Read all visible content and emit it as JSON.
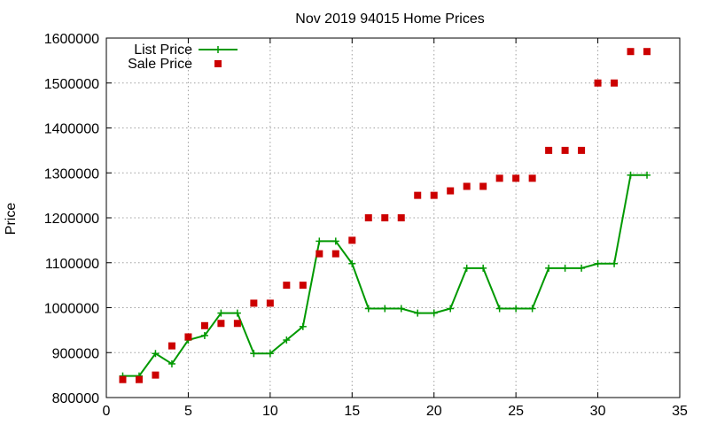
{
  "chart_data": {
    "type": "line",
    "title": "Nov 2019 94015 Home Prices",
    "xlabel": "",
    "ylabel": "Price",
    "xlim": [
      0,
      35
    ],
    "ylim": [
      800000,
      1600000
    ],
    "xticks": [
      0,
      5,
      10,
      15,
      20,
      25,
      30,
      35
    ],
    "yticks": [
      800000,
      900000,
      1000000,
      1100000,
      1200000,
      1300000,
      1400000,
      1500000,
      1600000
    ],
    "grid": true,
    "legend_position": "top-left",
    "series": [
      {
        "name": "List Price",
        "style": "line+cross",
        "color": "#009900",
        "x": [
          1,
          2,
          3,
          4,
          5,
          6,
          7,
          8,
          9,
          10,
          11,
          12,
          13,
          14,
          15,
          16,
          17,
          18,
          19,
          20,
          21,
          22,
          23,
          24,
          25,
          26,
          27,
          28,
          29,
          30,
          31,
          32,
          33
        ],
        "y": [
          848000,
          848000,
          898000,
          875000,
          928000,
          938000,
          988000,
          988000,
          898000,
          898000,
          928000,
          958000,
          1148000,
          1148000,
          1098000,
          998000,
          998000,
          998000,
          988000,
          988000,
          998000,
          1088000,
          1088000,
          998000,
          998000,
          998000,
          1088000,
          1088000,
          1088000,
          1098000,
          1098000,
          1295000,
          1295000
        ]
      },
      {
        "name": "Sale Price",
        "style": "square",
        "color": "#cc0000",
        "x": [
          1,
          2,
          3,
          4,
          5,
          6,
          7,
          8,
          9,
          10,
          11,
          12,
          13,
          14,
          15,
          16,
          17,
          18,
          19,
          20,
          21,
          22,
          23,
          24,
          25,
          26,
          27,
          28,
          29,
          30,
          31,
          32,
          33
        ],
        "y": [
          840000,
          840000,
          850000,
          915000,
          935000,
          960000,
          965000,
          965000,
          1010000,
          1010000,
          1050000,
          1050000,
          1120000,
          1120000,
          1150000,
          1200000,
          1200000,
          1200000,
          1250000,
          1250000,
          1260000,
          1270000,
          1270000,
          1288000,
          1288000,
          1288000,
          1350000,
          1350000,
          1350000,
          1500000,
          1500000,
          1570000,
          1570000
        ]
      }
    ]
  }
}
